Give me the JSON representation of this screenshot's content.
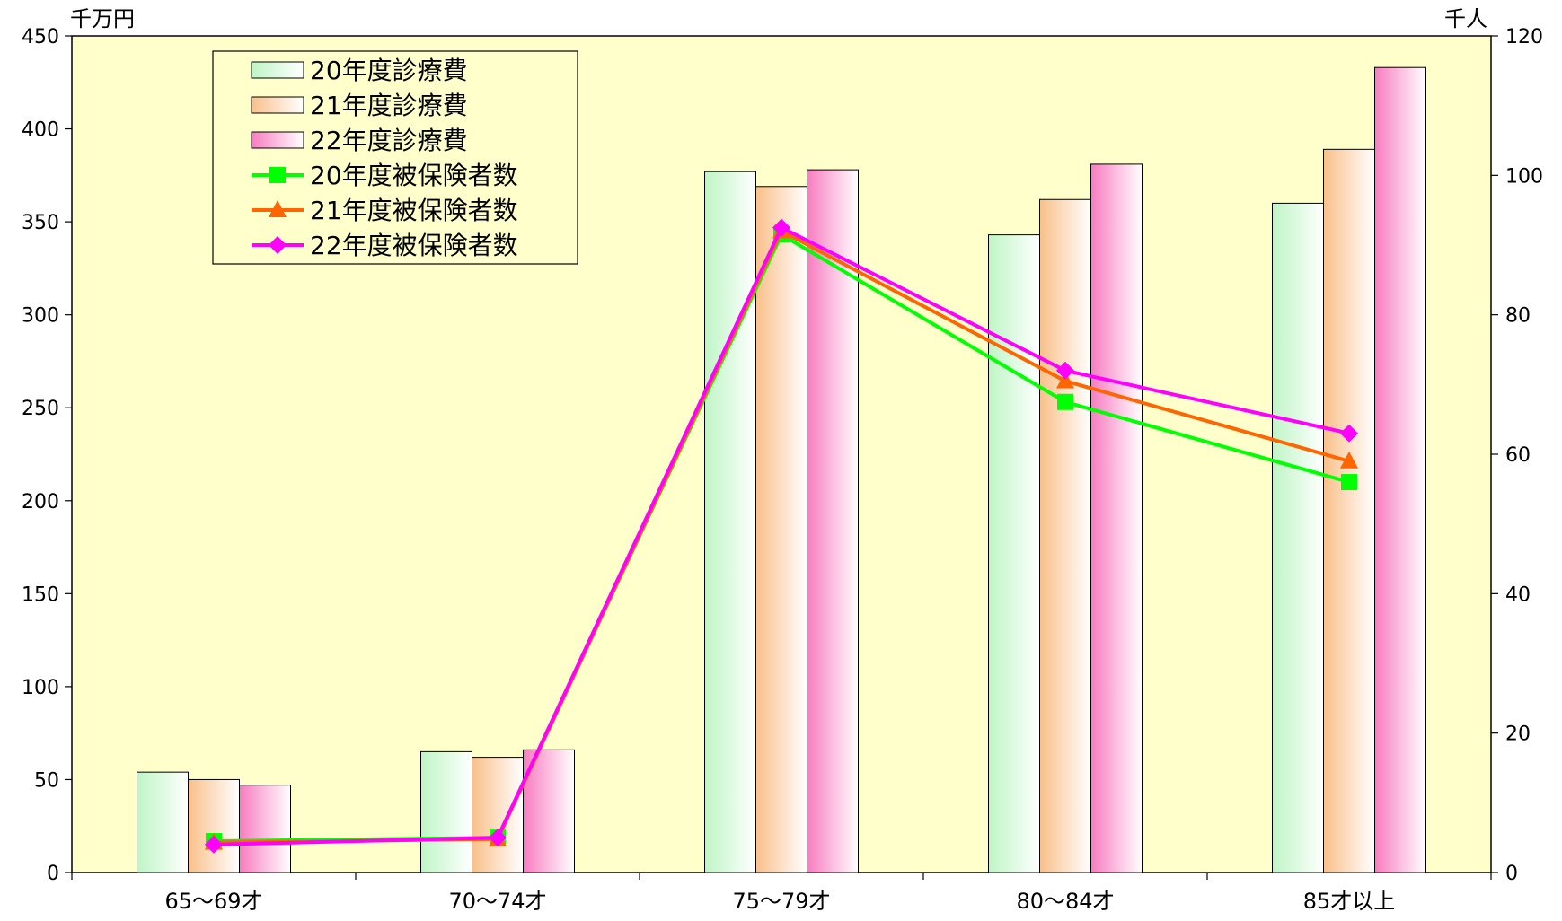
{
  "chart_data": {
    "type": "bar",
    "categories": [
      "65～69才",
      "70～74才",
      "75～79才",
      "80～84才",
      "85才以上"
    ],
    "bar_series": [
      {
        "name": "20年度診療費",
        "values": [
          54,
          65,
          377,
          343,
          360
        ],
        "gradient": [
          "#bff5c6",
          "#ffffff"
        ]
      },
      {
        "name": "21年度診療費",
        "values": [
          50,
          62,
          369,
          362,
          389
        ],
        "gradient": [
          "#f9c08a",
          "#ffffff"
        ]
      },
      {
        "name": "22年度診療費",
        "values": [
          47,
          66,
          378,
          381,
          433
        ],
        "gradient": [
          "#f77cc1",
          "#ffffff"
        ]
      }
    ],
    "line_series": [
      {
        "name": "20年度被保険者数",
        "values": [
          4.5,
          5.0,
          91.5,
          67.5,
          56.0
        ],
        "color": "#00ff00",
        "marker": "square"
      },
      {
        "name": "21年度被保険者数",
        "values": [
          4.3,
          4.8,
          92.0,
          70.5,
          59.0
        ],
        "color": "#ff6600",
        "marker": "triangle"
      },
      {
        "name": "22年度被保険者数",
        "values": [
          4.0,
          5.0,
          92.5,
          72.0,
          63.0
        ],
        "color": "#ff00ff",
        "marker": "diamond"
      }
    ],
    "left_axis": {
      "unit": "千万円",
      "ylim": [
        0,
        450
      ],
      "ticks": [
        "0",
        "50",
        "100",
        "150",
        "200",
        "250",
        "300",
        "350",
        "400",
        "450"
      ]
    },
    "right_axis": {
      "unit": "千人",
      "ylim": [
        0,
        120
      ],
      "ticks": [
        "0",
        "20",
        "40",
        "60",
        "80",
        "100",
        "120"
      ]
    },
    "legend_position": "top-left",
    "plot_background": "#ffffcc",
    "grid": false
  }
}
